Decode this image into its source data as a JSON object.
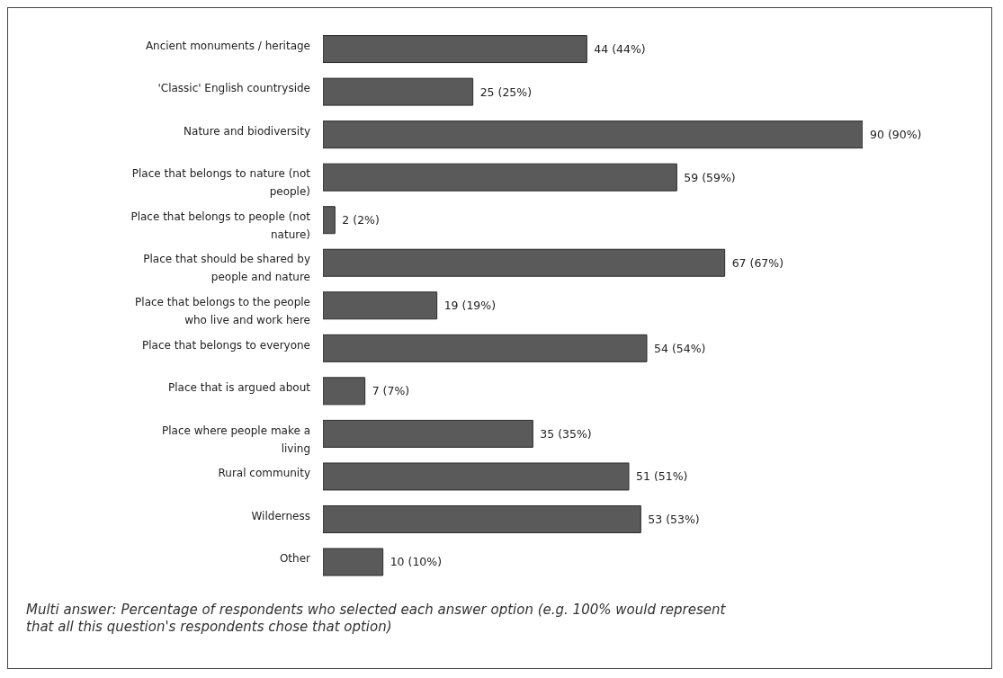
{
  "chart_data": {
    "type": "bar",
    "orientation": "horizontal",
    "categories": [
      "Ancient monuments / heritage",
      "'Classic' English countryside",
      "Nature and biodiversity",
      "Place that belongs to nature (not people)",
      "Place that belongs to people (not nature)",
      "Place that should be shared by people and nature",
      "Place that belongs to the people who live and work here",
      "Place that belongs to everyone",
      "Place that is argued about",
      "Place where people make a living",
      "Rural community",
      "Wilderness",
      "Other"
    ],
    "values": [
      44,
      25,
      90,
      59,
      2,
      67,
      19,
      54,
      7,
      35,
      51,
      53,
      10
    ],
    "value_labels": [
      "44 (44%)",
      "25 (25%)",
      "90 (90%)",
      "59 (59%)",
      "2 (2%)",
      "67 (67%)",
      "19 (19%)",
      "54 (54%)",
      "7 (7%)",
      "35 (35%)",
      "51 (51%)",
      "53 (53%)",
      "10 (10%)"
    ],
    "color": "#5a5a5a",
    "grid": false,
    "legend": false,
    "annotations": [
      "Multi answer: Percentage of respondents who selected each answer option (e.g. 100% would represent that all this question's respondents chose that option)"
    ]
  }
}
